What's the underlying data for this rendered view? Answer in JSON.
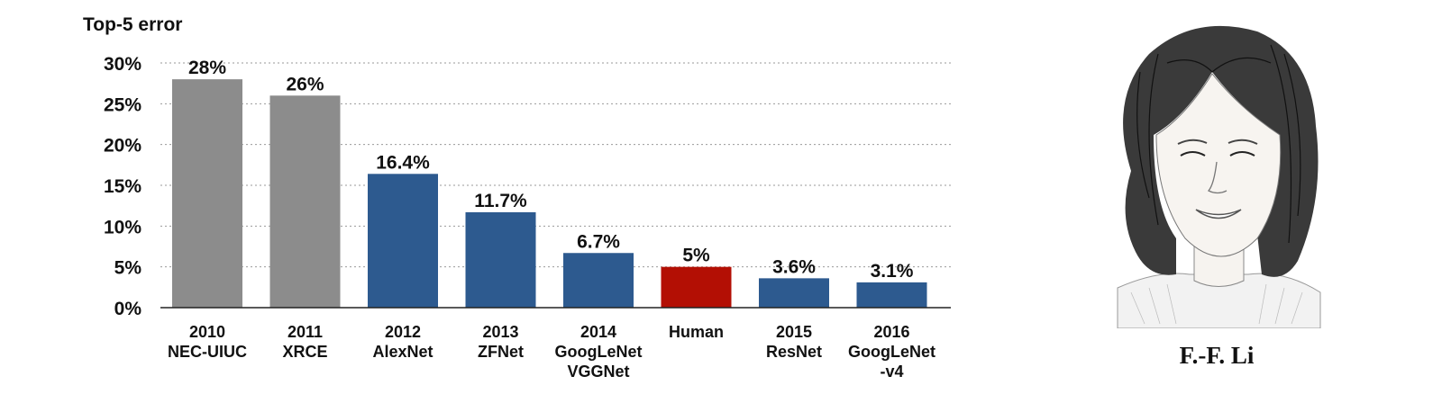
{
  "chart_data": {
    "type": "bar",
    "title": "Top-5 error",
    "ylim": [
      0,
      30
    ],
    "yticks": [
      "0%",
      "5%",
      "10%",
      "15%",
      "20%",
      "25%",
      "30%"
    ],
    "grid": true,
    "bars": [
      {
        "year": "2010",
        "name": "NEC-UIUC",
        "name2": "",
        "value": 28,
        "label": "28%",
        "color": "#8c8c8c"
      },
      {
        "year": "2011",
        "name": "XRCE",
        "name2": "",
        "value": 26,
        "label": "26%",
        "color": "#8c8c8c"
      },
      {
        "year": "2012",
        "name": "AlexNet",
        "name2": "",
        "value": 16.4,
        "label": "16.4%",
        "color": "#2d5a8f"
      },
      {
        "year": "2013",
        "name": "ZFNet",
        "name2": "",
        "value": 11.7,
        "label": "11.7%",
        "color": "#2d5a8f"
      },
      {
        "year": "2014",
        "name": "GoogLeNet",
        "name2": "VGGNet",
        "value": 6.7,
        "label": "6.7%",
        "color": "#2d5a8f"
      },
      {
        "year": "Human",
        "name": "",
        "name2": "",
        "value": 5,
        "label": "5%",
        "color": "#b30f04"
      },
      {
        "year": "2015",
        "name": "ResNet",
        "name2": "",
        "value": 3.6,
        "label": "3.6%",
        "color": "#2d5a8f"
      },
      {
        "year": "2016",
        "name": "GoogLeNet",
        "name2": "-v4",
        "value": 3.1,
        "label": "3.1%",
        "color": "#2d5a8f"
      }
    ]
  },
  "portrait": {
    "caption": "F.-F. Li"
  }
}
